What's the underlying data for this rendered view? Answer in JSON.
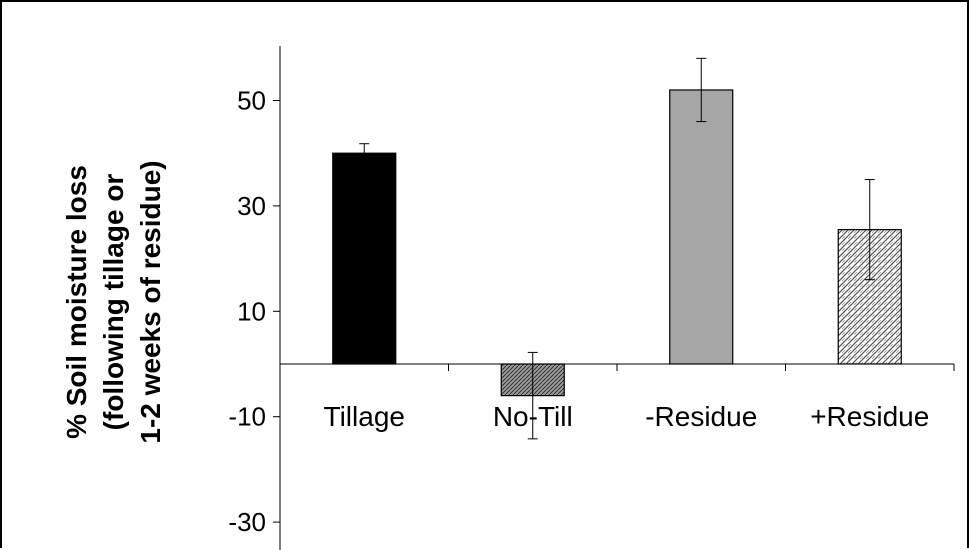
{
  "chart_data": {
    "type": "bar",
    "categories": [
      "Tillage",
      "No-Till",
      "-Residue",
      "+Residue"
    ],
    "values": [
      40,
      -6,
      52,
      25.5
    ],
    "errors": [
      1.8,
      8.2,
      6,
      9.5
    ],
    "ylabel": [
      "% Soil moisture loss",
      "(following tillage or",
      "1-2 weeks of residue)"
    ],
    "yticks": [
      50,
      30,
      10,
      -10,
      -30
    ],
    "ylim": [
      -32,
      60
    ],
    "colors": [
      "#000000",
      "#8c8c8c",
      "#a6a6a6",
      "#d9d9d9"
    ],
    "fills": [
      "solid",
      "dense-hatch",
      "solid",
      "light-hatch"
    ]
  }
}
